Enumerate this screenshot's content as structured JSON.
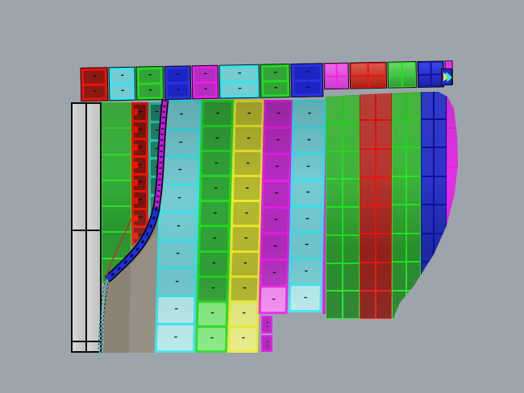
{
  "viewport": {
    "name": "3d-panelized-surface-viewport",
    "background": "#9da4ac"
  },
  "glyphs": {
    "cell_label": "▪▪▪▪",
    "tab_label": "▪▪"
  },
  "palette": {
    "background": "#9da4ac",
    "shadow": "#8b8376",
    "shadow_light": "#9a9287",
    "mast_fill": "#c9cbc8",
    "curve_blue": "#1b2fe8",
    "curve_magenta": "#cf13ee",
    "curve_cyan": "#25e6e6",
    "curve_red": "#c03022",
    "label_color": "#0e0e0e",
    "schemes": {
      "red": {
        "edge": "#ea1309",
        "cell": "#8c1a11"
      },
      "red-tab": {
        "edge": "#f01408",
        "cell": "#7f150e"
      },
      "cyan": {
        "edge": "#39e2ec",
        "cell": "#74ccd2",
        "pale": "#b3e7e9"
      },
      "green": {
        "edge": "#23d922",
        "cell": "#33a339",
        "pale": "#80e87d"
      },
      "teal": {
        "edge": "#25c9a8",
        "cell": "#1f7f68"
      },
      "blue": {
        "edge": "#2b31e0",
        "cell": "#1d24c4"
      },
      "magenta": {
        "edge": "#e71ee7",
        "cell": "#b52cc0",
        "pale": "#ef86ef"
      },
      "yellow": {
        "edge": "#e9ec2b",
        "cell": "#b6ba30",
        "pale": "#e7eb7e"
      },
      "green-wire": {
        "lines": "#2fe32d",
        "top": "#46c447",
        "bot": "#1d8f26",
        "grid": true
      },
      "green-grid": {
        "lines": "#1fe81d",
        "top": "#54d54b",
        "bot": "#1a7a21",
        "grid": true
      },
      "red-grid": {
        "lines": "#f21111",
        "top": "#d84a42",
        "bot": "#7c130c",
        "grid": true
      },
      "blue-grid": {
        "lines": "#0d12a0",
        "top": "#3a43ea",
        "bot": "#151d92",
        "grid": true
      },
      "magenta-light": {
        "lines": "#f21ef2",
        "top": "#ee6ae2",
        "bot": "#cc3ad0",
        "grid": true
      },
      "red-plain": {
        "lines": "#f01310",
        "top": "#e4574c",
        "bot": "#a91d13",
        "grid": true
      },
      "green-plain": {
        "lines": "#22e21f",
        "top": "#66dd62",
        "bot": "#2e9a34",
        "grid": true
      },
      "blue-plain": {
        "lines": "#0d12a0",
        "top": "#3d46ec",
        "bot": "#1a20a8",
        "grid": true
      },
      "magenta-rim": {
        "lines": "#f21ef2",
        "top": "#ee3cee",
        "bot": "#d01ed0",
        "grid": true
      }
    }
  },
  "back_row": {
    "panels": [
      {
        "id": "band-red",
        "color": "red",
        "labeled": true
      },
      {
        "id": "band-cyan",
        "color": "cyan",
        "labeled": true
      },
      {
        "id": "band-green",
        "color": "green",
        "labeled": true
      },
      {
        "id": "band-blue",
        "color": "blue",
        "labeled": true
      },
      {
        "id": "band-magenta",
        "color": "magenta",
        "labeled": true
      },
      {
        "id": "band-cyan-wide",
        "color": "cyan",
        "labeled": true
      },
      {
        "id": "band-green-2",
        "color": "green",
        "labeled": true
      },
      {
        "id": "band-blue-2",
        "color": "blue",
        "labeled": true
      },
      {
        "id": "band-magenta-pl",
        "color": "magenta-light",
        "labeled": false
      },
      {
        "id": "band-red-pl",
        "color": "red-plain",
        "labeled": false
      },
      {
        "id": "band-green-pl",
        "color": "green-plain",
        "labeled": false
      },
      {
        "id": "band-blue-pl",
        "color": "blue-plain",
        "labeled": false
      },
      {
        "id": "band-rim",
        "color": "magenta-rim",
        "labeled": false
      }
    ]
  },
  "surface": {
    "strips": [
      {
        "id": "left-green",
        "color": "green-wire",
        "rows": 7,
        "cols": 1,
        "labeled": false
      },
      {
        "id": "left-red",
        "color": "red-tab",
        "rows": 8,
        "cols": 1,
        "labeled": true,
        "tab": true
      },
      {
        "id": "left-teal",
        "color": "teal",
        "rows": 6,
        "cols": 1,
        "labeled": true
      },
      {
        "id": "cyan-main",
        "color": "cyan",
        "rows": 9,
        "cols": 1,
        "labeled": true,
        "pale_bottom": 2
      },
      {
        "id": "green-main",
        "color": "green",
        "rows": 10,
        "cols": 1,
        "labeled": true,
        "pale_bottom": 2
      },
      {
        "id": "yellow-main",
        "color": "yellow",
        "rows": 10,
        "cols": 1,
        "labeled": true,
        "pale_bottom": 2
      },
      {
        "id": "magenta-main",
        "color": "magenta",
        "rows": 8,
        "cols": 1,
        "labeled": true,
        "pale_bottom": 1,
        "tabs": 2
      },
      {
        "id": "cyan-right",
        "color": "cyan",
        "rows": 8,
        "cols": 1,
        "labeled": true,
        "pale_bottom": 1
      },
      {
        "id": "green-grid",
        "color": "green-grid",
        "rows": 8,
        "cols": 2,
        "labeled": false
      },
      {
        "id": "red-grid",
        "color": "red-grid",
        "rows": 8,
        "cols": 2,
        "labeled": false
      },
      {
        "id": "green-grid-2",
        "color": "green-grid",
        "rows": 8,
        "cols": 2,
        "labeled": false
      },
      {
        "id": "blue-grid",
        "color": "blue-grid",
        "rows": 8,
        "cols": 2,
        "labeled": false
      },
      {
        "id": "magenta-rim-r",
        "color": "magenta-rim",
        "rows": 6,
        "cols": 1,
        "labeled": false
      }
    ]
  },
  "marker": {
    "name": "corner-marker"
  }
}
